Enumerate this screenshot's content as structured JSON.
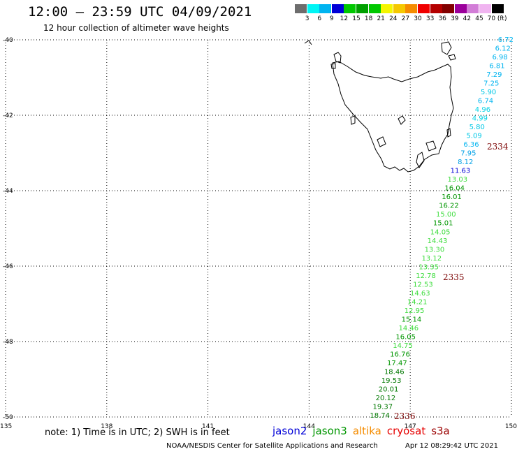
{
  "header": {
    "title": "12:00 – 23:59 UTC 04/09/2021",
    "subtitle": "12 hour collection of altimeter wave heights"
  },
  "colorbar": {
    "colors": [
      "#6d6d6d",
      "#00f5f5",
      "#00b4f0",
      "#0000d7",
      "#00c800",
      "#00a000",
      "#00c800",
      "#f5f500",
      "#f5c800",
      "#f58c00",
      "#f00000",
      "#b40000",
      "#820000",
      "#9b009b",
      "#d27dd7",
      "#f0b4f0",
      "#000000"
    ],
    "labels": [
      "3",
      "6",
      "9",
      "12",
      "15",
      "18",
      "21",
      "24",
      "27",
      "30",
      "33",
      "36",
      "39",
      "42",
      "45",
      "70 (ft)"
    ]
  },
  "map": {
    "lat_labels": [
      "-40",
      "-42",
      "-44",
      "-46",
      "-48",
      "-50"
    ],
    "lon_labels": [
      "135",
      "138",
      "141",
      "144",
      "147",
      "150"
    ],
    "lat_range": [
      -50,
      -40
    ],
    "lon_range": [
      135,
      150
    ],
    "wave_heights": [
      {
        "v": "6.72",
        "c": "#00b4f0"
      },
      {
        "v": "6.12",
        "c": "#00b4f0"
      },
      {
        "v": "6.98",
        "c": "#00b4f0"
      },
      {
        "v": "6.81",
        "c": "#00b4f0"
      },
      {
        "v": "7.29",
        "c": "#00b4f0"
      },
      {
        "v": "7.25",
        "c": "#00b4f0"
      },
      {
        "v": "5.90",
        "c": "#00c8e6"
      },
      {
        "v": "6.74",
        "c": "#00b4f0"
      },
      {
        "v": "4.96",
        "c": "#00d2e6"
      },
      {
        "v": "4.99",
        "c": "#00d2e6"
      },
      {
        "v": "5.80",
        "c": "#00c8e6"
      },
      {
        "v": "5.09",
        "c": "#00c8e6"
      },
      {
        "v": "6.36",
        "c": "#00b4f0"
      },
      {
        "v": "7.95",
        "c": "#00a0e6"
      },
      {
        "v": "8.12",
        "c": "#00a0e6"
      },
      {
        "v": "11.63",
        "c": "#0000d7"
      },
      {
        "v": "13.03",
        "c": "#3cdc3c"
      },
      {
        "v": "16.04",
        "c": "#009600"
      },
      {
        "v": "16.01",
        "c": "#009600"
      },
      {
        "v": "16.22",
        "c": "#009600"
      },
      {
        "v": "15.00",
        "c": "#3cdc3c"
      },
      {
        "v": "15.01",
        "c": "#009600"
      },
      {
        "v": "14.05",
        "c": "#3cdc3c"
      },
      {
        "v": "14.43",
        "c": "#3cdc3c"
      },
      {
        "v": "13.30",
        "c": "#3cdc3c"
      },
      {
        "v": "13.12",
        "c": "#3cdc3c"
      },
      {
        "v": "13.35",
        "c": "#3cdc3c"
      },
      {
        "v": "12.78",
        "c": "#3cdc3c"
      },
      {
        "v": "12.53",
        "c": "#3cdc3c"
      },
      {
        "v": "14.63",
        "c": "#3cdc3c"
      },
      {
        "v": "14.21",
        "c": "#3cdc3c"
      },
      {
        "v": "12.95",
        "c": "#3cdc3c"
      },
      {
        "v": "15.14",
        "c": "#009600"
      },
      {
        "v": "14.46",
        "c": "#3cdc3c"
      },
      {
        "v": "16.05",
        "c": "#009600"
      },
      {
        "v": "14.75",
        "c": "#3cdc3c"
      },
      {
        "v": "16.76",
        "c": "#009600"
      },
      {
        "v": "17.47",
        "c": "#009600"
      },
      {
        "v": "18.46",
        "c": "#007800"
      },
      {
        "v": "19.53",
        "c": "#007800"
      },
      {
        "v": "20.01",
        "c": "#007800"
      },
      {
        "v": "20.12",
        "c": "#007800"
      },
      {
        "v": "19.37",
        "c": "#007800"
      },
      {
        "v": "18.74",
        "c": "#007800"
      }
    ],
    "pass_labels": [
      "2334",
      "2335",
      "2336"
    ]
  },
  "footer": {
    "note": "note: 1) Time is in UTC; 2) SWH is in feet",
    "satellites": [
      {
        "name": "jason2",
        "color": "#0000d7"
      },
      {
        "name": "jason3",
        "color": "#009600"
      },
      {
        "name": "altika",
        "color": "#f58c00"
      },
      {
        "name": "cryosat",
        "color": "#e60000"
      },
      {
        "name": "s3a",
        "color": "#9b0000"
      }
    ],
    "credit": "NOAA/NESDIS Center for Satellite Applications and Research",
    "timestamp": "Apr 12 08:29:42 UTC 2021"
  }
}
